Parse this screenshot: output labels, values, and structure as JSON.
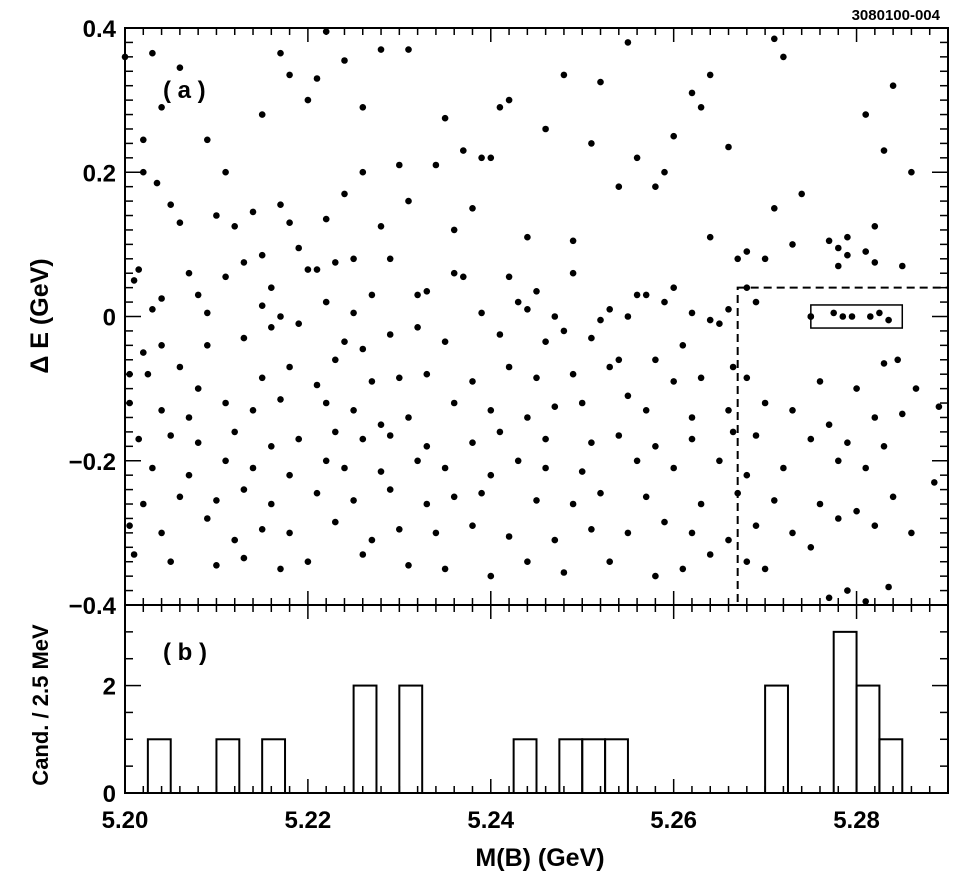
{
  "figure_id": "3080100-004",
  "chart_data": [
    {
      "type": "scatter",
      "panel_label": "( a )",
      "ylabel": "Δ E  (GeV)",
      "xlim": [
        5.2,
        5.29
      ],
      "ylim": [
        -0.4,
        0.4
      ],
      "x_ticks": [
        "5.20",
        "5.22",
        "5.24",
        "5.26",
        "5.28"
      ],
      "y_ticks": [
        "−0.4",
        "−0.2",
        "0",
        "0.2",
        "0.4"
      ],
      "grid": false,
      "signal_box": {
        "x": [
          5.275,
          5.285
        ],
        "y": [
          -0.016,
          0.016
        ],
        "style": "solid"
      },
      "sideband_region": {
        "x": [
          5.267,
          5.29
        ],
        "y": [
          -0.4,
          0.04
        ],
        "style": "dashed"
      },
      "x": [
        5.2,
        5.201,
        5.202,
        5.203,
        5.204,
        5.206,
        5.209,
        5.211,
        5.215,
        5.217,
        5.218,
        5.22,
        5.222,
        5.224,
        5.226,
        5.228,
        5.231,
        5.235,
        5.239,
        5.241,
        5.242,
        5.246,
        5.248,
        5.251,
        5.255,
        5.259,
        5.262,
        5.264,
        5.271,
        5.272,
        5.281,
        5.284,
        5.2035,
        5.205,
        5.21,
        5.217,
        5.221,
        5.226,
        5.23,
        5.234,
        5.237,
        5.24,
        5.252,
        5.256,
        5.26,
        5.263,
        5.266,
        5.283,
        5.202,
        5.206,
        5.212,
        5.214,
        5.218,
        5.222,
        5.224,
        5.228,
        5.231,
        5.236,
        5.238,
        5.244,
        5.249,
        5.254,
        5.258,
        5.264,
        5.271,
        5.274,
        5.277,
        5.279,
        5.282,
        5.286,
        5.2015,
        5.204,
        5.207,
        5.215,
        5.219,
        5.221,
        5.225,
        5.229,
        5.236,
        5.242,
        5.249,
        5.256,
        5.267,
        5.27,
        5.278,
        5.281,
        5.2005,
        5.203,
        5.209,
        5.213,
        5.216,
        5.22,
        5.223,
        5.227,
        5.233,
        5.237,
        5.243,
        5.245,
        5.253,
        5.257,
        5.26,
        5.268,
        5.273,
        5.278,
        5.282,
        5.285,
        5.202,
        5.208,
        5.211,
        5.215,
        5.217,
        5.222,
        5.225,
        5.232,
        5.239,
        5.244,
        5.247,
        5.252,
        5.255,
        5.259,
        5.262,
        5.265,
        5.268,
        5.275,
        5.279,
        5.283,
        5.204,
        5.209,
        5.213,
        5.216,
        5.219,
        5.224,
        5.226,
        5.229,
        5.232,
        5.235,
        5.241,
        5.246,
        5.248,
        5.251,
        5.254,
        5.261,
        5.264,
        5.266,
        5.269,
        5.275,
        5.2775,
        5.2785,
        5.2795,
        5.2815,
        5.2825,
        5.2835,
        5.2865,
        5.2025,
        5.206,
        5.208,
        5.215,
        5.218,
        5.221,
        5.223,
        5.227,
        5.23,
        5.233,
        5.238,
        5.242,
        5.245,
        5.249,
        5.253,
        5.258,
        5.26,
        5.263,
        5.2665,
        5.268,
        5.276,
        5.28,
        5.2845,
        5.2005,
        5.204,
        5.207,
        5.211,
        5.214,
        5.217,
        5.222,
        5.225,
        5.228,
        5.231,
        5.236,
        5.24,
        5.244,
        5.247,
        5.25,
        5.255,
        5.257,
        5.262,
        5.266,
        5.27,
        5.273,
        5.277,
        5.282,
        5.285,
        5.289,
        5.2015,
        5.205,
        5.208,
        5.212,
        5.216,
        5.219,
        5.223,
        5.226,
        5.229,
        5.233,
        5.238,
        5.241,
        5.246,
        5.251,
        5.254,
        5.258,
        5.262,
        5.2665,
        5.269,
        5.275,
        5.279,
        5.283,
        5.203,
        5.207,
        5.211,
        5.214,
        5.218,
        5.222,
        5.224,
        5.228,
        5.232,
        5.235,
        5.24,
        5.243,
        5.246,
        5.25,
        5.256,
        5.26,
        5.265,
        5.268,
        5.272,
        5.278,
        5.281,
        5.2885,
        5.202,
        5.206,
        5.21,
        5.213,
        5.216,
        5.221,
        5.225,
        5.229,
        5.233,
        5.236,
        5.239,
        5.245,
        5.249,
        5.252,
        5.257,
        5.263,
        5.267,
        5.271,
        5.276,
        5.28,
        5.284,
        5.2005,
        5.204,
        5.209,
        5.212,
        5.215,
        5.218,
        5.223,
        5.227,
        5.23,
        5.234,
        5.238,
        5.242,
        5.247,
        5.251,
        5.255,
        5.259,
        5.262,
        5.266,
        5.269,
        5.273,
        5.278,
        5.282,
        5.286,
        5.201,
        5.205,
        5.21,
        5.213,
        5.217,
        5.22,
        5.226,
        5.231,
        5.235,
        5.24,
        5.244,
        5.248,
        5.253,
        5.258,
        5.261,
        5.264,
        5.268,
        5.27,
        5.275,
        5.277,
        5.279,
        5.281,
        5.2835
      ],
      "y": [
        0.36,
        0.05,
        0.245,
        0.365,
        0.29,
        0.345,
        0.245,
        0.2,
        0.28,
        0.365,
        0.335,
        0.3,
        0.395,
        0.355,
        0.29,
        0.37,
        0.37,
        0.275,
        0.22,
        0.29,
        0.3,
        0.26,
        0.335,
        0.24,
        0.38,
        0.2,
        0.31,
        0.335,
        0.385,
        0.36,
        0.28,
        0.32,
        0.185,
        0.155,
        0.14,
        0.155,
        0.33,
        0.2,
        0.21,
        0.21,
        0.23,
        0.22,
        0.325,
        0.22,
        0.25,
        0.29,
        0.235,
        0.23,
        0.2,
        0.13,
        0.125,
        0.145,
        0.13,
        0.135,
        0.17,
        0.125,
        0.16,
        0.12,
        0.15,
        0.11,
        0.105,
        0.18,
        0.18,
        0.11,
        0.15,
        0.17,
        0.105,
        0.11,
        0.125,
        0.2,
        0.065,
        0.025,
        0.06,
        0.085,
        0.095,
        0.065,
        0.08,
        0.08,
        0.06,
        0.055,
        0.06,
        0.03,
        0.08,
        0.08,
        0.07,
        0.09,
        -0.08,
        0.01,
        -0.04,
        0.075,
        0.04,
        0.065,
        0.075,
        0.03,
        0.035,
        0.055,
        0.02,
        0.035,
        0.01,
        0.03,
        0.04,
        0.09,
        0.1,
        0.095,
        0.075,
        0.07,
        -0.05,
        0.03,
        0.055,
        0.015,
        0.0,
        0.02,
        0.005,
        0.03,
        0.005,
        0.01,
        0.0,
        -0.005,
        0.0,
        0.02,
        0.005,
        -0.01,
        0.04,
        0.0,
        0.085,
        -0.065,
        -0.04,
        0.005,
        -0.03,
        -0.015,
        -0.01,
        -0.035,
        -0.045,
        -0.025,
        -0.015,
        -0.035,
        -0.025,
        -0.035,
        -0.02,
        -0.03,
        -0.06,
        -0.04,
        -0.005,
        0.01,
        0.02,
        0.0,
        0.005,
        0.0,
        0.0,
        0.0,
        0.005,
        -0.005,
        -0.1,
        -0.08,
        -0.07,
        -0.1,
        -0.085,
        -0.07,
        -0.095,
        -0.06,
        -0.09,
        -0.085,
        -0.08,
        -0.09,
        -0.07,
        -0.085,
        -0.08,
        -0.07,
        -0.06,
        -0.09,
        -0.085,
        -0.07,
        -0.085,
        -0.09,
        -0.1,
        -0.06,
        -0.12,
        -0.13,
        -0.14,
        -0.12,
        -0.13,
        -0.115,
        -0.12,
        -0.13,
        -0.15,
        -0.14,
        -0.12,
        -0.13,
        -0.14,
        -0.125,
        -0.12,
        -0.11,
        -0.13,
        -0.14,
        -0.13,
        -0.12,
        -0.13,
        -0.15,
        -0.14,
        -0.135,
        -0.125,
        -0.17,
        -0.165,
        -0.175,
        -0.16,
        -0.18,
        -0.17,
        -0.16,
        -0.17,
        -0.165,
        -0.18,
        -0.175,
        -0.16,
        -0.17,
        -0.175,
        -0.165,
        -0.18,
        -0.17,
        -0.16,
        -0.165,
        -0.17,
        -0.175,
        -0.18,
        -0.21,
        -0.22,
        -0.2,
        -0.21,
        -0.22,
        -0.2,
        -0.21,
        -0.215,
        -0.2,
        -0.21,
        -0.22,
        -0.2,
        -0.21,
        -0.215,
        -0.2,
        -0.21,
        -0.2,
        -0.22,
        -0.21,
        -0.2,
        -0.21,
        -0.23,
        -0.26,
        -0.25,
        -0.255,
        -0.24,
        -0.26,
        -0.245,
        -0.255,
        -0.24,
        -0.26,
        -0.25,
        -0.245,
        -0.255,
        -0.26,
        -0.245,
        -0.25,
        -0.26,
        -0.245,
        -0.255,
        -0.26,
        -0.27,
        -0.25,
        -0.29,
        -0.3,
        -0.28,
        -0.31,
        -0.295,
        -0.3,
        -0.285,
        -0.31,
        -0.295,
        -0.3,
        -0.29,
        -0.305,
        -0.31,
        -0.295,
        -0.3,
        -0.285,
        -0.3,
        -0.31,
        -0.29,
        -0.3,
        -0.28,
        -0.29,
        -0.3,
        -0.33,
        -0.34,
        -0.345,
        -0.335,
        -0.35,
        -0.34,
        -0.33,
        -0.345,
        -0.35,
        -0.36,
        -0.34,
        -0.355,
        -0.34,
        -0.36,
        -0.35,
        -0.33,
        -0.34,
        -0.35,
        -0.32,
        -0.39,
        -0.38,
        -0.395,
        -0.375
      ]
    },
    {
      "type": "histogram",
      "panel_label": "( b )",
      "xlabel": "M(B) (GeV)",
      "ylabel": "Cand. / 2.5 MeV",
      "xlim": [
        5.2,
        5.29
      ],
      "ylim": [
        0,
        3.5
      ],
      "x_ticks": [
        "5.20",
        "5.22",
        "5.24",
        "5.26",
        "5.28"
      ],
      "y_ticks": [
        "0",
        "2"
      ],
      "bin_width": 0.0025,
      "bins": [
        {
          "x": 5.2,
          "count": 0
        },
        {
          "x": 5.2025,
          "count": 1
        },
        {
          "x": 5.205,
          "count": 0
        },
        {
          "x": 5.2075,
          "count": 0
        },
        {
          "x": 5.21,
          "count": 1
        },
        {
          "x": 5.2125,
          "count": 0
        },
        {
          "x": 5.215,
          "count": 1
        },
        {
          "x": 5.2175,
          "count": 0
        },
        {
          "x": 5.22,
          "count": 0
        },
        {
          "x": 5.2225,
          "count": 0
        },
        {
          "x": 5.225,
          "count": 2
        },
        {
          "x": 5.2275,
          "count": 0
        },
        {
          "x": 5.23,
          "count": 2
        },
        {
          "x": 5.2325,
          "count": 0
        },
        {
          "x": 5.235,
          "count": 0
        },
        {
          "x": 5.2375,
          "count": 0
        },
        {
          "x": 5.24,
          "count": 0
        },
        {
          "x": 5.2425,
          "count": 1
        },
        {
          "x": 5.245,
          "count": 0
        },
        {
          "x": 5.2475,
          "count": 1
        },
        {
          "x": 5.25,
          "count": 1
        },
        {
          "x": 5.2525,
          "count": 1
        },
        {
          "x": 5.255,
          "count": 0
        },
        {
          "x": 5.2575,
          "count": 0
        },
        {
          "x": 5.26,
          "count": 0
        },
        {
          "x": 5.2625,
          "count": 0
        },
        {
          "x": 5.265,
          "count": 0
        },
        {
          "x": 5.2675,
          "count": 0
        },
        {
          "x": 5.27,
          "count": 2
        },
        {
          "x": 5.2725,
          "count": 0
        },
        {
          "x": 5.275,
          "count": 0
        },
        {
          "x": 5.2775,
          "count": 3
        },
        {
          "x": 5.28,
          "count": 2
        },
        {
          "x": 5.2825,
          "count": 1
        },
        {
          "x": 5.285,
          "count": 0
        },
        {
          "x": 5.2875,
          "count": 0
        }
      ]
    }
  ]
}
